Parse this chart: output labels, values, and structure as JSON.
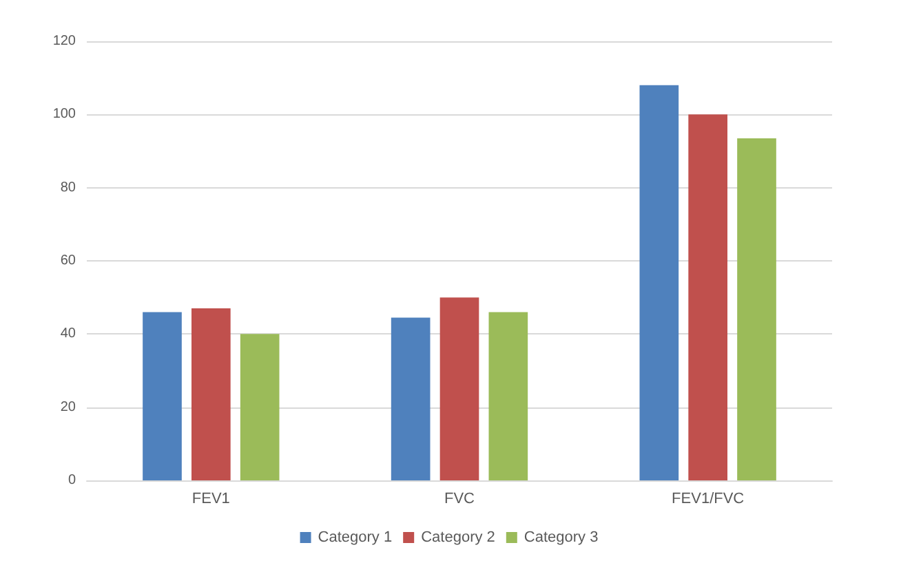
{
  "chart_data": {
    "type": "bar",
    "categories": [
      "FEV1",
      "FVC",
      "FEV1/FVC"
    ],
    "series": [
      {
        "name": "Category 1",
        "color": "#4f81bd",
        "values": [
          46,
          44.5,
          108
        ]
      },
      {
        "name": "Category 2",
        "color": "#c0504d",
        "values": [
          47,
          50,
          100
        ]
      },
      {
        "name": "Category 3",
        "color": "#9bbb59",
        "values": [
          40,
          46,
          93.5
        ]
      }
    ],
    "ylim": [
      0,
      120
    ],
    "yticks": [
      0,
      20,
      40,
      60,
      80,
      100,
      120
    ],
    "grid": "y",
    "legend": "bottom"
  }
}
